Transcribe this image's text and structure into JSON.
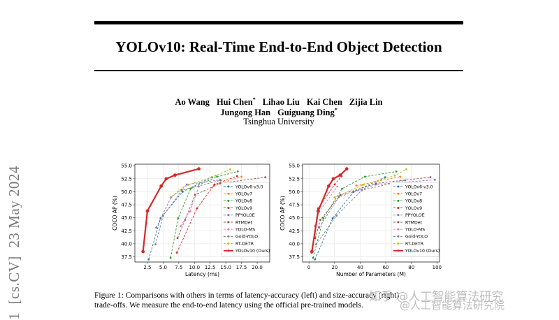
{
  "paper": {
    "title": "YOLOv10: Real-Time End-to-End Object Detection",
    "authors_line1": [
      "Ao Wang",
      "Hui Chen*",
      "Lihao Liu",
      "Kai Chen",
      "Zijia Lin"
    ],
    "authors_line2": [
      "Jungong Han",
      "Guiguang Ding*"
    ],
    "affiliation": "Tsinghua University",
    "arxiv_stamp": "1  [cs.CV]  23 May 2024",
    "caption_line1": "Figure 1: Comparisons with others in terms of latency-accuracy (left) and size-accuracy (right)",
    "caption_line2": "trade-offs. We measure the end-to-end latency using the official pre-trained models.",
    "watermark1": "知乎 @人工智能算法研究",
    "watermark2": "@人工智能算法研究院"
  },
  "chart_data": [
    {
      "type": "line",
      "xlabel": "Latency (ms)",
      "ylabel": "COCO AP (%)",
      "xlim": [
        0.5,
        22
      ],
      "ylim": [
        36.5,
        55.3
      ],
      "xticks": [
        2.5,
        5.0,
        7.5,
        10.0,
        12.5,
        15.0,
        17.5,
        20.0
      ],
      "xtick_labels": [
        "2.5",
        "5.0",
        "7.5",
        "10.0",
        "12.5",
        "15.0",
        "17.5",
        "20.0"
      ],
      "yticks": [
        37.5,
        40.0,
        42.5,
        45.0,
        47.5,
        50.0,
        52.5,
        55.0
      ],
      "ytick_labels": [
        "37.5",
        "40.0",
        "42.5",
        "45.0",
        "47.5",
        "50.0",
        "52.5",
        "55.0"
      ],
      "legend_position": "lower-right",
      "series": [
        {
          "name": "YOLOv6-v3.0",
          "color": "#1f77b4",
          "x": [
            2.7,
            4.6,
            8.1,
            12.8
          ],
          "y": [
            37.0,
            44.9,
            50.0,
            52.8
          ]
        },
        {
          "name": "YOLOv7",
          "color": "#ff7f0e",
          "x": [
            13.1,
            17.5
          ],
          "y": [
            51.2,
            52.9
          ]
        },
        {
          "name": "YOLOv8",
          "color": "#2ca02c",
          "x": [
            6.2,
            7.4,
            9.4,
            13.6,
            16.9
          ],
          "y": [
            37.3,
            44.9,
            50.6,
            52.9,
            53.9
          ]
        },
        {
          "name": "YOLOv9",
          "color": "#d62728",
          "x": [
            7.2,
            10.4,
            13.2,
            16.8
          ],
          "y": [
            38.3,
            46.8,
            51.4,
            53.0
          ]
        },
        {
          "name": "PPYOLOE",
          "color": "#9467bd",
          "x": [
            3.9,
            6.3,
            8.8,
            14.1
          ],
          "y": [
            43.1,
            49.0,
            51.4,
            52.3
          ]
        },
        {
          "name": "RTMDet",
          "color": "#8c564b",
          "x": [
            7.3,
            8.5,
            10.1,
            14.1,
            21.3
          ],
          "y": [
            41.1,
            44.6,
            49.4,
            51.6,
            52.8
          ]
        },
        {
          "name": "YOLO-MS",
          "color": "#e377c2",
          "x": [
            7.8,
            9.3,
            10.7
          ],
          "y": [
            43.4,
            46.2,
            51.0
          ]
        },
        {
          "name": "Gold-YOLO",
          "color": "#7f7f7f",
          "x": [
            3.8,
            5.0,
            8.0,
            14.2
          ],
          "y": [
            39.9,
            45.4,
            50.3,
            52.2
          ]
        },
        {
          "name": "RT-DETR",
          "color": "#bcbd22",
          "x": [
            6.2,
            9.0,
            13.4,
            15.7
          ],
          "y": [
            48.9,
            51.3,
            53.1,
            54.3
          ]
        },
        {
          "name": "YOLOv10 (Ours)",
          "color": "#d62728",
          "x": [
            1.8,
            2.5,
            4.7,
            5.5,
            6.9,
            10.7
          ],
          "y": [
            38.5,
            46.3,
            51.1,
            52.5,
            53.2,
            54.4
          ]
        }
      ]
    },
    {
      "type": "line",
      "xlabel": "Number of Parameters (M)",
      "ylabel": "COCO AP (%)",
      "xlim": [
        -5,
        102
      ],
      "ylim": [
        36.5,
        55.3
      ],
      "xticks": [
        0,
        20,
        40,
        60,
        80,
        100
      ],
      "xtick_labels": [
        "0",
        "20",
        "40",
        "60",
        "80",
        "100"
      ],
      "yticks": [
        37.5,
        40.0,
        42.5,
        45.0,
        47.5,
        50.0,
        52.5,
        55.0
      ],
      "ytick_labels": [
        "37.5",
        "40.0",
        "42.5",
        "45.0",
        "47.5",
        "50.0",
        "52.5",
        "55.0"
      ],
      "legend_position": "lower-right",
      "series": [
        {
          "name": "YOLOv6-v3.0",
          "color": "#1f77b4",
          "x": [
            4.7,
            18.5,
            34.9,
            59.6
          ],
          "y": [
            37.0,
            44.9,
            50.0,
            52.8
          ]
        },
        {
          "name": "YOLOv7",
          "color": "#ff7f0e",
          "x": [
            36.9,
            71.3
          ],
          "y": [
            51.2,
            52.9
          ]
        },
        {
          "name": "YOLOv8",
          "color": "#2ca02c",
          "x": [
            3.2,
            11.2,
            25.9,
            43.7,
            68.2
          ],
          "y": [
            37.3,
            44.9,
            50.6,
            52.9,
            53.9
          ]
        },
        {
          "name": "YOLOv9",
          "color": "#d62728",
          "x": [
            2.0,
            7.1,
            20.1,
            25.5
          ],
          "y": [
            38.3,
            46.8,
            51.4,
            53.0
          ]
        },
        {
          "name": "PPYOLOE",
          "color": "#9467bd",
          "x": [
            7.9,
            23.4,
            52.2,
            98.4
          ],
          "y": [
            43.1,
            49.0,
            51.4,
            52.3
          ]
        },
        {
          "name": "RTMDet",
          "color": "#8c564b",
          "x": [
            4.9,
            8.9,
            24.7,
            52.3,
            94.9
          ],
          "y": [
            41.1,
            44.6,
            49.4,
            51.6,
            52.8
          ]
        },
        {
          "name": "YOLO-MS",
          "color": "#e377c2",
          "x": [
            4.5,
            8.1,
            22.2
          ],
          "y": [
            43.4,
            46.2,
            51.0
          ]
        },
        {
          "name": "Gold-YOLO",
          "color": "#7f7f7f",
          "x": [
            5.6,
            21.5,
            41.3,
            75.1
          ],
          "y": [
            39.9,
            45.4,
            50.3,
            52.2
          ]
        },
        {
          "name": "RT-DETR",
          "color": "#bcbd22",
          "x": [
            20.0,
            42.0,
            67.0,
            76.0
          ],
          "y": [
            48.9,
            51.3,
            53.1,
            54.3
          ]
        },
        {
          "name": "YOLOv10 (Ours)",
          "color": "#d62728",
          "x": [
            2.3,
            7.2,
            15.4,
            19.1,
            24.4,
            29.5
          ],
          "y": [
            38.5,
            46.3,
            51.1,
            52.5,
            53.2,
            54.4
          ]
        }
      ]
    }
  ]
}
